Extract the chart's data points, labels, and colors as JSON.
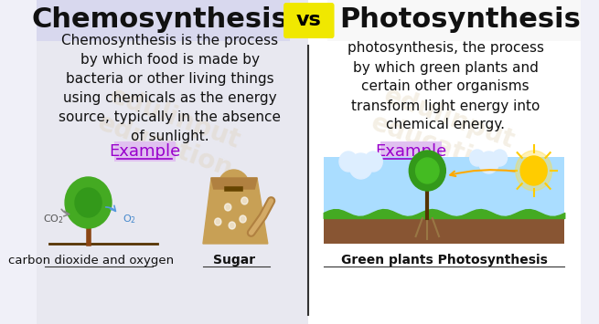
{
  "bg_color": "#f0f0f8",
  "left_bg": "#e8e8f0",
  "right_bg": "#ffffff",
  "title_left": "Chemosynthesis",
  "title_right": "Photosynthesis",
  "vs_text": "vs",
  "vs_bg": "#f0e800",
  "divider_color": "#333333",
  "left_body": "Chemosynthesis is the process\nby which food is made by\nbacteria or other living things\nusing chemicals as the energy\nsource, typically in the absence\nof sunlight.",
  "right_body": "photosynthesis, the process\nby which green plants and\ncertain other organisms\ntransform light energy into\nchemical energy.",
  "example_label": "Example",
  "example_color": "#9900cc",
  "example_bg": "#e0c0f0",
  "caption_left1": "carbon dioxide and oxygen",
  "caption_left2": "Sugar",
  "caption_right": "Green plants Photosynthesis",
  "title_fontsize": 22,
  "body_fontsize": 11,
  "example_fontsize": 13,
  "caption_fontsize": 10
}
